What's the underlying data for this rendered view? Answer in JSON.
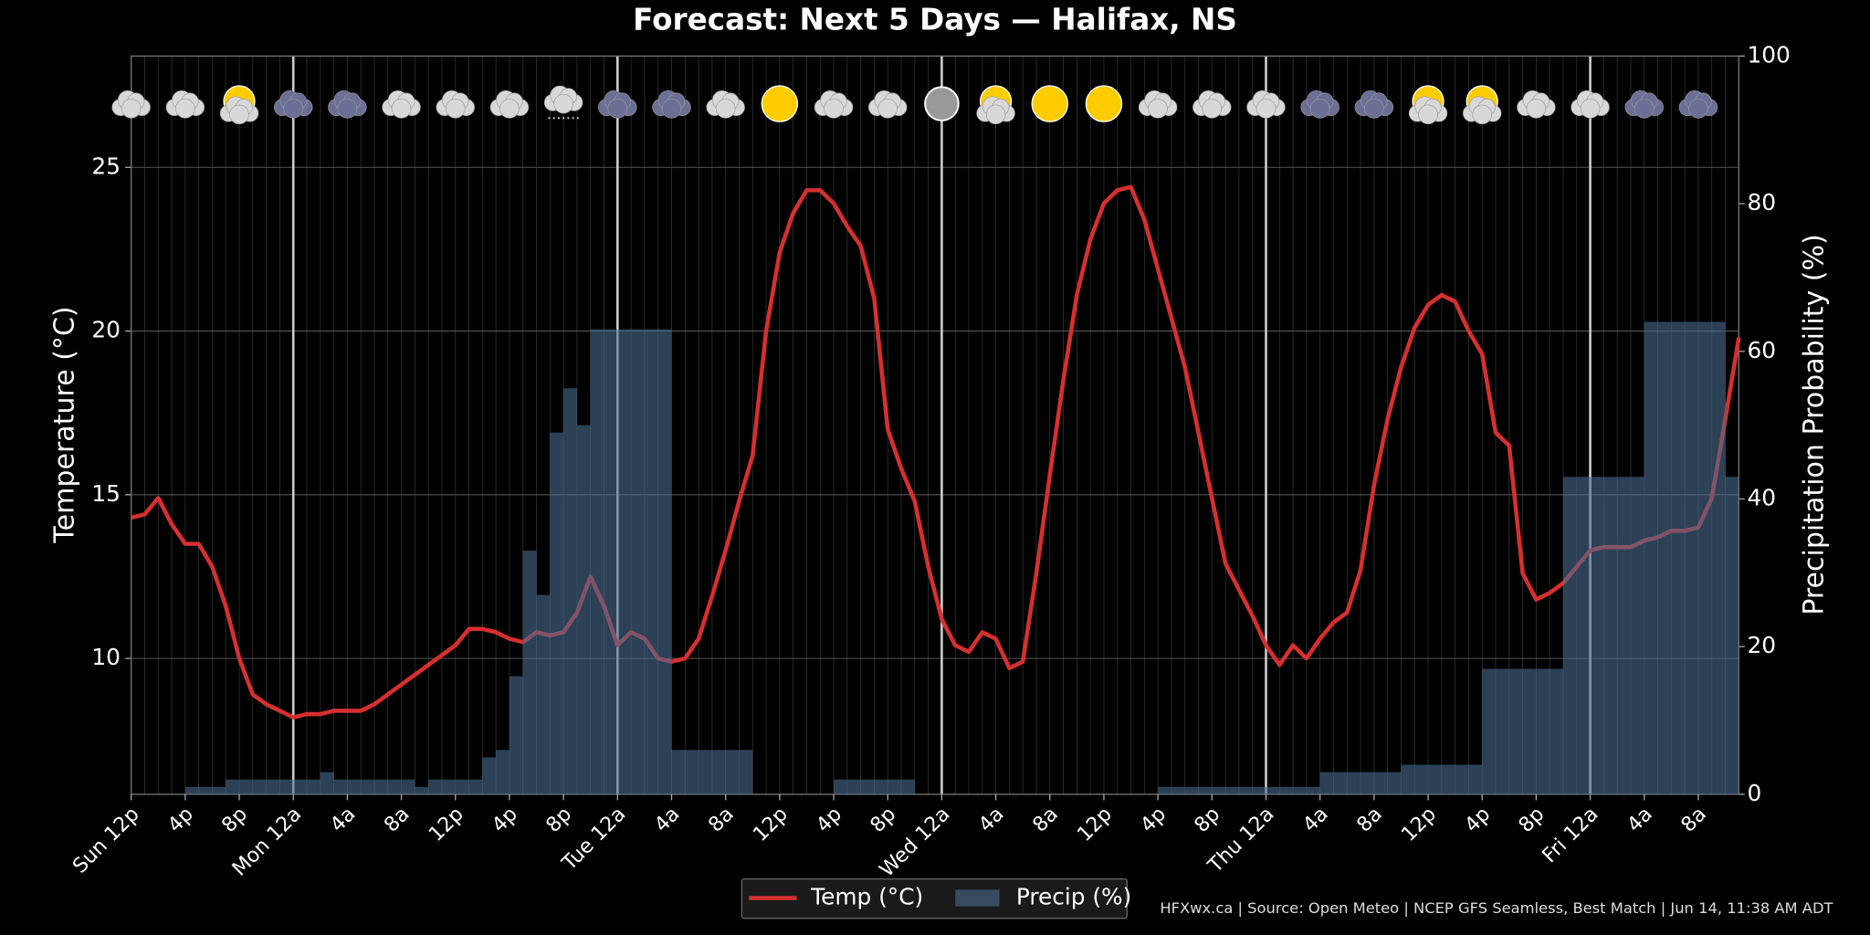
{
  "chart_data": {
    "type": "combo",
    "title": "Forecast: Next 5 Days — Halifax, NS",
    "y_label": "Temperature (°C)",
    "y2_label": "Precipitation Probability (%)",
    "footer": "HFXwx.ca | Source: Open Meteo | NCEP GFS Seamless, Best Match | Jun 14, 11:38 AM ADT",
    "categories": [
      "Sun 12p",
      null,
      null,
      null,
      "4p",
      null,
      null,
      null,
      "8p",
      null,
      null,
      null,
      "Mon 12a",
      null,
      null,
      null,
      "4a",
      null,
      null,
      null,
      "8a",
      null,
      null,
      null,
      "12p",
      null,
      null,
      null,
      "4p",
      null,
      null,
      null,
      "8p",
      null,
      null,
      null,
      "Tue 12a",
      null,
      null,
      null,
      "4a",
      null,
      null,
      null,
      "8a",
      null,
      null,
      null,
      "12p",
      null,
      null,
      null,
      "4p",
      null,
      null,
      null,
      "8p",
      null,
      null,
      null,
      "Wed 12a",
      null,
      null,
      null,
      "4a",
      null,
      null,
      null,
      "8a",
      null,
      null,
      null,
      "12p",
      null,
      null,
      null,
      "4p",
      null,
      null,
      null,
      "8p",
      null,
      null,
      null,
      "Thu 12a",
      null,
      null,
      null,
      "4a",
      null,
      null,
      null,
      "8a",
      null,
      null,
      null,
      "12p",
      null,
      null,
      null,
      "4p",
      null,
      null,
      null,
      "8p",
      null,
      null,
      null,
      "Fri 12a",
      null,
      null,
      null,
      "4a",
      null,
      null,
      null,
      "8a",
      null,
      null,
      null
    ],
    "series": [
      {
        "name": "Temp (°C)",
        "type": "line",
        "color": "#d62f2f",
        "values": [
          14.3,
          14.4,
          14.9,
          14.1,
          13.5,
          13.5,
          12.8,
          11.6,
          10.0,
          8.9,
          8.6,
          8.4,
          8.2,
          8.3,
          8.3,
          8.4,
          8.4,
          8.4,
          8.6,
          8.9,
          9.2,
          9.5,
          9.8,
          10.1,
          10.4,
          10.9,
          10.9,
          10.8,
          10.6,
          10.5,
          10.8,
          10.7,
          10.8,
          11.4,
          12.5,
          11.6,
          10.4,
          10.8,
          10.6,
          10.0,
          9.9,
          10.0,
          10.6,
          11.9,
          13.3,
          14.8,
          16.2,
          20.0,
          22.4,
          23.6,
          24.3,
          24.3,
          23.9,
          23.2,
          22.6,
          21.0,
          17.0,
          15.8,
          14.8,
          12.8,
          11.2,
          10.4,
          10.2,
          10.8,
          10.6,
          9.7,
          9.9,
          12.6,
          15.6,
          18.5,
          21.1,
          22.8,
          23.9,
          24.3,
          24.4,
          23.4,
          21.9,
          20.4,
          18.9,
          16.9,
          14.9,
          12.9,
          12.1,
          11.3,
          10.4,
          9.8,
          10.4,
          10.0,
          10.6,
          11.1,
          11.4,
          12.7,
          15.3,
          17.3,
          18.9,
          20.1,
          20.8,
          21.1,
          20.9,
          20.0,
          19.3,
          16.9,
          16.5,
          12.6,
          11.8,
          12.0,
          12.3,
          12.8,
          13.3,
          13.4,
          13.4,
          13.4,
          13.6,
          13.7,
          13.9,
          13.9,
          14.0,
          14.9,
          17.3,
          19.8
        ]
      },
      {
        "name": "Precip (%)",
        "type": "bar",
        "axis": "y2",
        "color": "#4a6d8f",
        "values": [
          0,
          0,
          0,
          0,
          0,
          1,
          1,
          1,
          2,
          2,
          2,
          2,
          2,
          2,
          2,
          3,
          2,
          2,
          2,
          2,
          2,
          2,
          1,
          2,
          2,
          2,
          2,
          5,
          6,
          16,
          33,
          27,
          49,
          55,
          50,
          63,
          63,
          63,
          63,
          63,
          63,
          6,
          6,
          6,
          6,
          6,
          6,
          0,
          0,
          0,
          0,
          0,
          0,
          2,
          2,
          2,
          2,
          2,
          2,
          0,
          0,
          0,
          0,
          0,
          0,
          0,
          0,
          0,
          0,
          0,
          0,
          0,
          0,
          0,
          0,
          0,
          0,
          1,
          1,
          1,
          1,
          1,
          1,
          1,
          1,
          1,
          1,
          1,
          1,
          3,
          3,
          3,
          3,
          3,
          3,
          4,
          4,
          4,
          4,
          4,
          4,
          17,
          17,
          17,
          17,
          17,
          17,
          43,
          43,
          43,
          43,
          43,
          43,
          64,
          64,
          64,
          64,
          64,
          64,
          43
        ]
      }
    ],
    "ylim": [
      5.85,
      28.4
    ],
    "yticks": [
      10,
      15,
      20,
      25
    ],
    "y2lim": [
      0,
      100
    ],
    "y2ticks": [
      0,
      20,
      40,
      60,
      80,
      100
    ],
    "grid": true,
    "legend": "bottom"
  }
}
